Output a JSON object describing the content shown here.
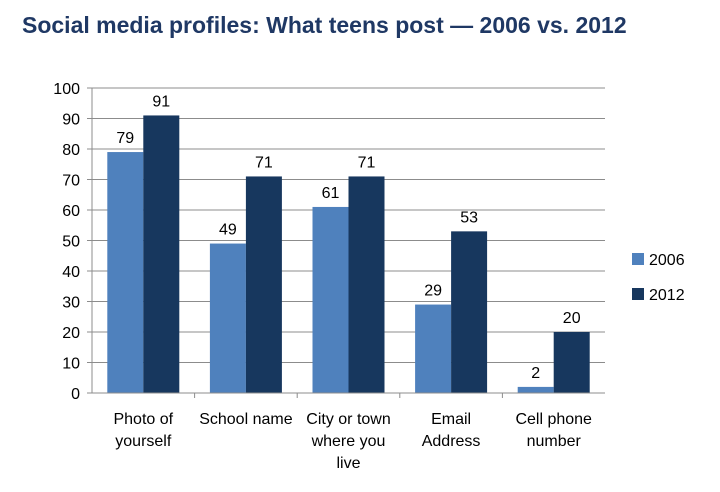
{
  "chart_data": {
    "type": "bar",
    "title": "Social media profiles: What teens post — 2006 vs. 2012",
    "categories": [
      [
        "Photo of",
        "yourself"
      ],
      [
        "School name"
      ],
      [
        "City or town",
        "where you",
        "live"
      ],
      [
        "Email",
        "Address"
      ],
      [
        "Cell phone",
        "number"
      ]
    ],
    "series": [
      {
        "name": "2006",
        "values": [
          79,
          49,
          61,
          29,
          2
        ],
        "color": "#4f81bd"
      },
      {
        "name": "2012",
        "values": [
          91,
          71,
          71,
          53,
          20
        ],
        "color": "#17375e"
      }
    ],
    "ylim": [
      0,
      100
    ],
    "yticks": [
      0,
      10,
      20,
      30,
      40,
      50,
      60,
      70,
      80,
      90,
      100
    ],
    "grid": true,
    "legend": "right"
  }
}
